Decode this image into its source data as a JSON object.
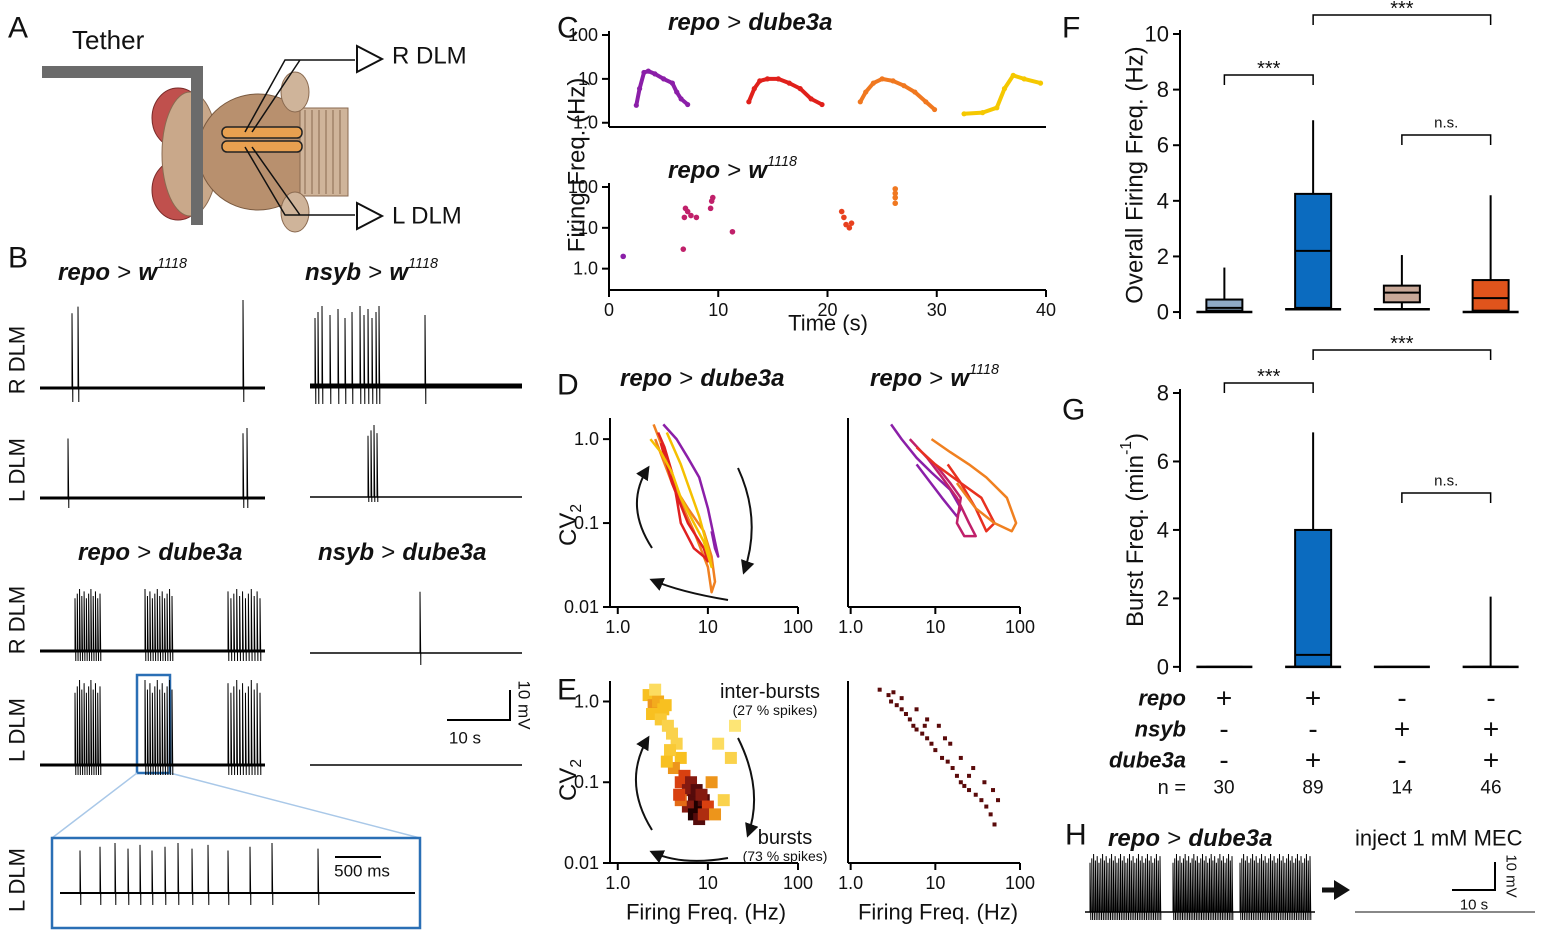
{
  "panel_letters": [
    "A",
    "B",
    "C",
    "D",
    "E",
    "F",
    "G",
    "H"
  ],
  "panel_a": {
    "tether": "Tether",
    "electrodes": [
      "R DLM",
      "L DLM"
    ]
  },
  "panel_b": {
    "genotypes": [
      {
        "driver": "repo",
        "op": ">",
        "target": "w",
        "sup": "1118"
      },
      {
        "driver": "nsyb",
        "op": ">",
        "target": "w",
        "sup": "1118"
      },
      {
        "driver": "repo",
        "op": ">",
        "target": "dube3a"
      },
      {
        "driver": "nsyb",
        "op": ">",
        "target": "dube3a"
      }
    ],
    "row_labels": [
      "R DLM",
      "L DLM",
      "R DLM",
      "L DLM",
      "L DLM"
    ],
    "time_scale": "10 s",
    "voltage_scale": "10 mV",
    "zoom_time_scale": "500 ms"
  },
  "chart_data": [
    {
      "type": "line",
      "markers": true,
      "title": {
        "driver": "repo",
        "op": ">",
        "target": "dube3a"
      },
      "ylabel": "Firing Freq. (Hz)",
      "yscale": "log",
      "xlim": [
        0,
        40
      ],
      "ylim": [
        0.8,
        100
      ],
      "yticks": [
        {
          "value": 1,
          "label": "1.0"
        },
        10,
        100
      ],
      "series": [
        {
          "color": "#8b1fa8",
          "x": [
            2.5,
            2.8,
            3.2,
            3.6,
            4.2,
            5,
            5.8,
            6.2,
            6.6,
            7.2
          ],
          "values": [
            2.5,
            6,
            14,
            15,
            13,
            10,
            8,
            5,
            3.5,
            2.6
          ]
        },
        {
          "color": "#e0201b",
          "x": [
            12.8,
            13.3,
            13.8,
            14.5,
            15.5,
            16.5,
            17.5,
            18.5,
            19.5
          ],
          "values": [
            3,
            6,
            9,
            10,
            10,
            8,
            6,
            3.5,
            2.6
          ]
        },
        {
          "color": "#f07820",
          "x": [
            23,
            23.5,
            24.2,
            25,
            26,
            27,
            28,
            29,
            29.8
          ],
          "values": [
            3,
            5,
            8,
            10,
            9,
            7,
            5,
            3,
            2
          ]
        },
        {
          "color": "#f5c800",
          "x": [
            32.5,
            34.2,
            35.5,
            36.2,
            37,
            38,
            39.5
          ],
          "values": [
            1.6,
            1.7,
            2.2,
            6,
            12,
            10,
            8
          ]
        }
      ]
    },
    {
      "type": "scatter",
      "title": {
        "driver": "repo",
        "op": ">",
        "target": "w",
        "sup": "1118"
      },
      "xlabel": "Time (s)",
      "yscale": "log",
      "xlim": [
        0,
        40
      ],
      "ylim": [
        0.3,
        100
      ],
      "xticks": [
        0,
        10,
        20,
        30,
        40
      ],
      "yticks": [
        {
          "value": 1,
          "label": "1.0"
        },
        10,
        100
      ],
      "series": [
        {
          "color": "#8b1fa8",
          "x": [
            1.3
          ],
          "values": [
            2
          ]
        },
        {
          "color": "#c0206a",
          "x": [
            6.8,
            6.9,
            7,
            7.2,
            7.5,
            8,
            9.3,
            9.4,
            9.5,
            11.3
          ],
          "values": [
            3,
            18,
            30,
            25,
            20,
            18,
            30,
            45,
            55,
            8
          ]
        },
        {
          "color": "#e8401e",
          "x": [
            21.3,
            21.5,
            21.7,
            22,
            22.2
          ],
          "values": [
            25,
            18,
            12,
            10,
            13
          ]
        },
        {
          "color": "#f07820",
          "x": [
            26.2,
            26.2,
            26.2,
            26.2
          ],
          "values": [
            40,
            55,
            70,
            90
          ]
        }
      ]
    },
    {
      "type": "line",
      "title": {
        "driver": "repo",
        "op": ">",
        "target": "dube3a"
      },
      "ylabel": {
        "text": "CV",
        "sub": "2"
      },
      "xscale": "log",
      "yscale": "log",
      "xlim": [
        0.82,
        100
      ],
      "ylim": [
        0.01,
        1.6
      ],
      "xticks": [
        {
          "value": 1,
          "label": "1.0"
        },
        10,
        100
      ],
      "yticks": [
        0.01,
        0.1,
        {
          "value": 1,
          "label": "1.0"
        }
      ],
      "series": [
        {
          "color": "#8b1fa8",
          "x": [
            3.2,
            4.5,
            6,
            8,
            10,
            12,
            13,
            12,
            11
          ],
          "values": [
            1.5,
            1.0,
            0.6,
            0.35,
            0.15,
            0.06,
            0.04,
            0.05,
            0.08
          ]
        },
        {
          "color": "#f08020",
          "x": [
            2.5,
            3,
            3.5,
            4,
            6,
            9,
            11,
            12,
            11,
            10,
            7,
            4,
            2.6
          ],
          "values": [
            1.5,
            0.9,
            0.5,
            0.3,
            0.15,
            0.08,
            0.04,
            0.02,
            0.015,
            0.03,
            0.08,
            0.3,
            1.0
          ]
        },
        {
          "color": "#e02020",
          "x": [
            2.8,
            3.3,
            4,
            4.5,
            5,
            7,
            9,
            10,
            9,
            6,
            4,
            3
          ],
          "values": [
            1.2,
            0.8,
            0.4,
            0.2,
            0.1,
            0.05,
            0.04,
            0.035,
            0.05,
            0.1,
            0.3,
            0.9
          ]
        },
        {
          "color": "#f5c000",
          "x": [
            2.3,
            3,
            4,
            5,
            7,
            9,
            11,
            10,
            8,
            5,
            3.5
          ],
          "values": [
            1.0,
            0.7,
            0.4,
            0.2,
            0.1,
            0.06,
            0.03,
            0.05,
            0.12,
            0.5,
            1.2
          ]
        }
      ]
    },
    {
      "type": "line",
      "title": {
        "driver": "repo",
        "op": ">",
        "target": "w",
        "sup": "1118"
      },
      "xscale": "log",
      "yscale": "log",
      "xlim": [
        0.93,
        100
      ],
      "ylim": [
        0.01,
        1.6
      ],
      "xticks": [
        {
          "value": 1,
          "label": "1.0"
        },
        10,
        100
      ],
      "series": [
        {
          "color": "#8b1fa8",
          "x": [
            3,
            4,
            6,
            9,
            15,
            20,
            18,
            12,
            6
          ],
          "values": [
            1.5,
            1.0,
            0.6,
            0.4,
            0.25,
            0.15,
            0.12,
            0.2,
            0.5
          ]
        },
        {
          "color": "#c0206a",
          "x": [
            5,
            8,
            12,
            18,
            25,
            30,
            22,
            18,
            20,
            15,
            10
          ],
          "values": [
            1.0,
            0.6,
            0.35,
            0.2,
            0.1,
            0.07,
            0.07,
            0.1,
            0.2,
            0.3,
            0.5
          ]
        },
        {
          "color": "#e83020",
          "x": [
            6,
            10,
            20,
            35,
            50,
            40,
            30,
            20,
            14
          ],
          "values": [
            0.8,
            0.5,
            0.3,
            0.2,
            0.1,
            0.08,
            0.15,
            0.3,
            0.5
          ]
        },
        {
          "color": "#f08020",
          "x": [
            9,
            15,
            25,
            40,
            70,
            90,
            80,
            50,
            30,
            18
          ],
          "values": [
            1.0,
            0.7,
            0.5,
            0.35,
            0.2,
            0.1,
            0.08,
            0.1,
            0.15,
            0.3
          ]
        }
      ]
    },
    {
      "type": "heatmap",
      "xlabel": "Firing Freq. (Hz)",
      "ylabel": {
        "text": "CV",
        "sub": "2"
      },
      "xscale": "log",
      "yscale": "log",
      "xlim": [
        0.82,
        100
      ],
      "ylim": [
        0.01,
        1.6
      ],
      "xticks": [
        {
          "value": 1,
          "label": "1.0"
        },
        10,
        100
      ],
      "yticks": [
        0.01,
        0.1,
        {
          "value": 1,
          "label": "1.0"
        }
      ],
      "annotations": [
        "inter-bursts",
        "(27 % spikes)",
        "bursts",
        "(73 % spikes)"
      ],
      "x": [
        2.2,
        2.5,
        2.8,
        3.2,
        2.4,
        3,
        3.6,
        4,
        2.6,
        3.4,
        4.5,
        5,
        3.8,
        4.2,
        5,
        6,
        7,
        8,
        9,
        5.5,
        6.5,
        7.5,
        8.5,
        10,
        6,
        7,
        8,
        9,
        12,
        15,
        5,
        11,
        13,
        20,
        18,
        4.8,
        3.5
      ],
      "values": [
        1.2,
        0.9,
        1.0,
        0.8,
        0.7,
        0.6,
        0.5,
        0.4,
        1.4,
        0.9,
        0.3,
        0.2,
        0.25,
        0.15,
        0.1,
        0.08,
        0.06,
        0.05,
        0.06,
        0.12,
        0.1,
        0.08,
        0.07,
        0.05,
        0.05,
        0.04,
        0.035,
        0.04,
        0.04,
        0.06,
        0.06,
        0.1,
        0.3,
        0.5,
        0.2,
        0.07,
        0.18
      ],
      "density": [
        0.3,
        0.4,
        0.35,
        0.3,
        0.3,
        0.25,
        0.2,
        0.2,
        0.15,
        0.3,
        0.2,
        0.3,
        0.25,
        0.4,
        0.6,
        0.8,
        0.9,
        1.0,
        0.9,
        0.6,
        0.8,
        0.9,
        0.8,
        0.6,
        0.8,
        1.0,
        0.9,
        0.7,
        0.4,
        0.2,
        0.5,
        0.4,
        0.15,
        0.1,
        0.2,
        0.6,
        0.3
      ]
    },
    {
      "type": "scatter",
      "xlabel": "Firing Freq. (Hz)",
      "xscale": "log",
      "yscale": "log",
      "xlim": [
        0.93,
        100
      ],
      "ylim": [
        0.01,
        1.6
      ],
      "xticks": [
        {
          "value": 1,
          "label": "1.0"
        },
        10,
        100
      ],
      "series": [
        {
          "color": "#5a0a0a",
          "x": [
            2.2,
            2.8,
            3,
            3.5,
            4,
            4.5,
            5,
            5.5,
            6,
            7,
            8,
            9,
            10,
            12,
            14,
            16,
            18,
            20,
            22,
            25,
            30,
            35,
            40,
            45,
            50,
            4,
            6,
            8,
            11,
            15,
            20,
            28,
            38,
            55,
            3.2,
            7.5,
            13,
            25,
            48
          ],
          "values": [
            1.4,
            1.2,
            1.0,
            0.9,
            0.8,
            0.7,
            0.6,
            0.5,
            0.45,
            0.4,
            0.35,
            0.3,
            0.25,
            0.2,
            0.18,
            0.15,
            0.12,
            0.1,
            0.09,
            0.08,
            0.07,
            0.06,
            0.05,
            0.04,
            0.03,
            1.1,
            0.8,
            0.6,
            0.5,
            0.3,
            0.2,
            0.15,
            0.1,
            0.06,
            1.3,
            0.5,
            0.35,
            0.12,
            0.08
          ]
        }
      ]
    },
    {
      "type": "box",
      "ylabel": "Overall Firing Freq. (Hz)",
      "ylim": [
        -0.25,
        10
      ],
      "yticks": [
        0,
        2,
        4,
        6,
        8,
        10
      ],
      "annotations": [
        "***",
        "***",
        "n.s."
      ],
      "boxes": [
        {
          "min": 0,
          "q1": 0.05,
          "median": 0.15,
          "q3": 0.45,
          "max": 1.6,
          "color": "#8faac6"
        },
        {
          "min": 0.1,
          "q1": 0.15,
          "median": 2.2,
          "q3": 4.25,
          "max": 6.9,
          "color": "#0b6bbf"
        },
        {
          "min": 0.1,
          "q1": 0.35,
          "median": 0.7,
          "q3": 0.95,
          "max": 2.05,
          "color": "#c8a898"
        },
        {
          "min": 0,
          "q1": 0.05,
          "median": 0.5,
          "q3": 1.15,
          "max": 4.2,
          "color": "#e0541c"
        }
      ]
    },
    {
      "type": "box",
      "ylabel": {
        "text": "Burst Freq. (min",
        "sup": "-1",
        "after": ")"
      },
      "ylim": [
        -0.15,
        8
      ],
      "yticks": [
        0,
        2,
        4,
        6,
        8
      ],
      "annotations": [
        "***",
        "***",
        "n.s."
      ],
      "boxes": [
        {
          "min": 0,
          "q1": 0,
          "median": 0,
          "q3": 0,
          "max": 0,
          "color": "#8faac6"
        },
        {
          "min": 0,
          "q1": 0,
          "median": 0.35,
          "q3": 4.0,
          "max": 6.85,
          "color": "#0b6bbf"
        },
        {
          "min": 0,
          "q1": 0,
          "median": 0,
          "q3": 0,
          "max": 0,
          "color": "#c8a898"
        },
        {
          "min": 0,
          "q1": 0,
          "median": 0,
          "q3": 0,
          "max": 2.05,
          "color": "#e0541c"
        }
      ]
    }
  ],
  "genotype_table": {
    "rows": [
      {
        "label": "repo",
        "cells": [
          "+",
          "+",
          "-",
          "-"
        ]
      },
      {
        "label": "nsyb",
        "cells": [
          "-",
          "-",
          "+",
          "+"
        ]
      },
      {
        "label": "dube3a",
        "cells": [
          "-",
          "+",
          "-",
          "+"
        ]
      }
    ],
    "n_label": "n =",
    "n": [
      30,
      89,
      14,
      46
    ]
  },
  "panel_h": {
    "genotype": {
      "driver": "repo",
      "op": ">",
      "target": "dube3a"
    },
    "treatment": "inject 1 mM MEC",
    "time_scale": "10 s",
    "voltage_scale": "10 mV"
  }
}
